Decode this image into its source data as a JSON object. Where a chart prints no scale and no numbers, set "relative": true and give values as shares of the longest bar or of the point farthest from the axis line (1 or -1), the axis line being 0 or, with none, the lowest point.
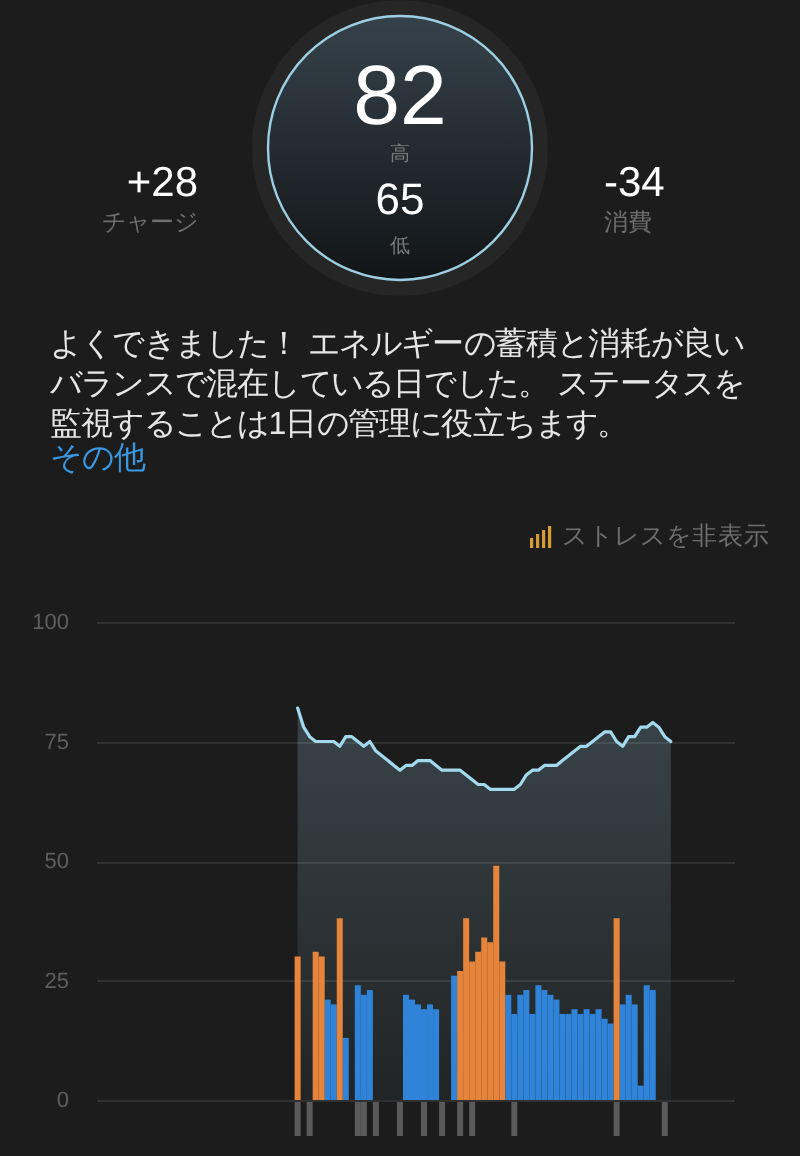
{
  "chart_data": [
    {
      "type": "other",
      "annotations": [
        "82",
        "高",
        "65",
        "低",
        "+28",
        "チャージ",
        "-34",
        "消費",
        "よくできました！ エネルギーの蓄積と消耗が良いバランスで混在している日でした。 ステータスを監視することは1日の管理に役立ちます。",
        "その他"
      ]
    },
    {
      "type": "bar",
      "categories": [
        null,
        null,
        null,
        null,
        null,
        null,
        null,
        null,
        null,
        null,
        null,
        null,
        null,
        null,
        null,
        null,
        null,
        null,
        null,
        null,
        null,
        null,
        null,
        null,
        null,
        null,
        null,
        null,
        null,
        null,
        null,
        null,
        null,
        null,
        null,
        null,
        null,
        null,
        null,
        null,
        null,
        null,
        null,
        null,
        null,
        null,
        null,
        null,
        null,
        null,
        null,
        null,
        null,
        null,
        null,
        null,
        null,
        null,
        null,
        null,
        null,
        null,
        null,
        null,
        null,
        null,
        null,
        null,
        null,
        null,
        null,
        null,
        null,
        null,
        null,
        null,
        null,
        null,
        null,
        null,
        null,
        null,
        null,
        null,
        null,
        null,
        null,
        null,
        null,
        null,
        null,
        null,
        null,
        null,
        null,
        null,
        null,
        null,
        null,
        null,
        null,
        null,
        null,
        null,
        null,
        null
      ],
      "series": [
        {
          "type": "area",
          "color": "#a3d9ef",
          "values": [
            null,
            null,
            null,
            null,
            null,
            null,
            null,
            null,
            null,
            null,
            null,
            null,
            null,
            null,
            null,
            null,
            null,
            null,
            null,
            null,
            null,
            null,
            null,
            null,
            null,
            null,
            null,
            null,
            null,
            null,
            null,
            null,
            null,
            82,
            78,
            76,
            75,
            75,
            75,
            75,
            74,
            76,
            76,
            75,
            74,
            75,
            73,
            72,
            71,
            70,
            69,
            70,
            70,
            71,
            71,
            71,
            70,
            69,
            69,
            69,
            69,
            68,
            67,
            66,
            66,
            65,
            65,
            65,
            65,
            65,
            66,
            68,
            69,
            69,
            70,
            70,
            70,
            71,
            72,
            73,
            74,
            74,
            75,
            76,
            77,
            77,
            75,
            74,
            76,
            76,
            78,
            78,
            79,
            78,
            76,
            75,
            null,
            null,
            null,
            null,
            null,
            null,
            null,
            null,
            null,
            null
          ]
        },
        {
          "type": "bar",
          "color": "#2f84da",
          "values": [
            null,
            null,
            null,
            null,
            null,
            null,
            null,
            null,
            null,
            null,
            null,
            null,
            null,
            null,
            null,
            null,
            null,
            null,
            null,
            null,
            null,
            null,
            null,
            null,
            null,
            null,
            null,
            null,
            null,
            null,
            null,
            null,
            null,
            null,
            null,
            null,
            null,
            null,
            21,
            20,
            null,
            13,
            null,
            24,
            22,
            23,
            null,
            null,
            null,
            null,
            null,
            22,
            21,
            20,
            19,
            20,
            19,
            null,
            null,
            26,
            null,
            null,
            null,
            null,
            null,
            null,
            null,
            null,
            22,
            18,
            22,
            23,
            18,
            24,
            23,
            22,
            21,
            18,
            18,
            19,
            18,
            19,
            18,
            19,
            17,
            16,
            null,
            20,
            22,
            20,
            3,
            24,
            23,
            null,
            null,
            null,
            null,
            null,
            null,
            null,
            null,
            null,
            null,
            null,
            null,
            null
          ]
        },
        {
          "type": "bar",
          "color": "#e5843a",
          "values": [
            null,
            null,
            null,
            null,
            null,
            null,
            null,
            null,
            null,
            null,
            null,
            null,
            null,
            null,
            null,
            null,
            null,
            null,
            null,
            null,
            null,
            null,
            null,
            null,
            null,
            null,
            null,
            null,
            null,
            null,
            null,
            null,
            null,
            30,
            null,
            null,
            31,
            30,
            null,
            null,
            38,
            null,
            null,
            null,
            null,
            null,
            null,
            null,
            null,
            null,
            null,
            null,
            null,
            null,
            null,
            null,
            null,
            null,
            null,
            null,
            27,
            38,
            29,
            31,
            34,
            33,
            49,
            29,
            null,
            null,
            null,
            null,
            null,
            null,
            null,
            null,
            null,
            null,
            null,
            null,
            null,
            null,
            null,
            null,
            null,
            null,
            38,
            null,
            null,
            null,
            null,
            null,
            null,
            null,
            null,
            null,
            null,
            null,
            null,
            null,
            null,
            null,
            null,
            null,
            null,
            null
          ]
        }
      ],
      "ylim": [
        0,
        100
      ],
      "yticks": [
        0,
        25,
        50,
        75,
        100
      ],
      "grid": "y",
      "tick_labels": "y",
      "annotations": [
        "ストレスを非表示"
      ]
    },
    {
      "type": "bar",
      "relative": true,
      "tick_labels": false,
      "categories": [
        null,
        null,
        null,
        null,
        null,
        null,
        null,
        null,
        null,
        null,
        null,
        null,
        null,
        null,
        null,
        null,
        null,
        null,
        null,
        null,
        null,
        null,
        null,
        null,
        null,
        null,
        null,
        null,
        null,
        null,
        null,
        null,
        null,
        null,
        null,
        null,
        null,
        null,
        null,
        null,
        null,
        null,
        null,
        null,
        null,
        null,
        null,
        null,
        null,
        null,
        null,
        null,
        null,
        null,
        null,
        null,
        null,
        null,
        null,
        null,
        null,
        null,
        null,
        null,
        null,
        null,
        null,
        null,
        null,
        null,
        null,
        null,
        null,
        null,
        null,
        null,
        null,
        null,
        null,
        null,
        null,
        null,
        null,
        null,
        null,
        null,
        null,
        null,
        null,
        null,
        null,
        null,
        null,
        null,
        null,
        null,
        null,
        null,
        null,
        null,
        null,
        null,
        null,
        null,
        null,
        null
      ],
      "series": [
        {
          "color": "#5a5a5a",
          "values": [
            null,
            null,
            null,
            null,
            null,
            null,
            null,
            null,
            null,
            null,
            null,
            null,
            null,
            null,
            null,
            null,
            null,
            null,
            null,
            null,
            null,
            null,
            null,
            null,
            null,
            null,
            null,
            null,
            null,
            null,
            null,
            null,
            null,
            1,
            null,
            1,
            null,
            null,
            null,
            null,
            null,
            null,
            null,
            1,
            1,
            null,
            1,
            null,
            null,
            null,
            1,
            null,
            null,
            null,
            1,
            null,
            null,
            1,
            null,
            null,
            1,
            null,
            1,
            null,
            null,
            null,
            null,
            null,
            null,
            1,
            null,
            null,
            null,
            null,
            null,
            null,
            null,
            null,
            null,
            null,
            null,
            null,
            null,
            null,
            null,
            null,
            1,
            null,
            null,
            null,
            null,
            null,
            null,
            null,
            1,
            null,
            null,
            null,
            null,
            null,
            null,
            null,
            null,
            null,
            null,
            null
          ]
        }
      ]
    }
  ]
}
